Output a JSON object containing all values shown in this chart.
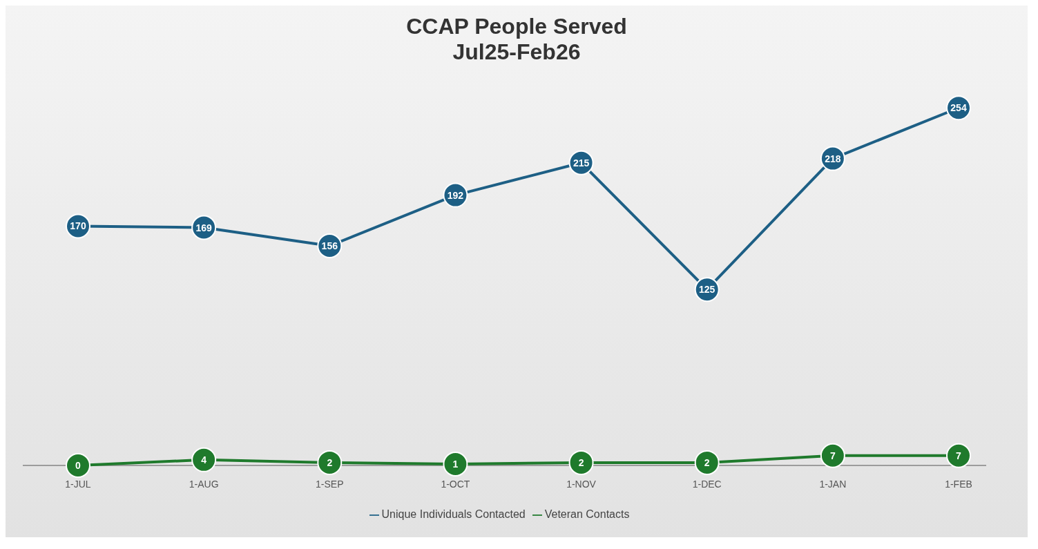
{
  "chart_data": {
    "type": "line",
    "title": "CCAP People Served",
    "subtitle": "Jul25-Feb26",
    "categories": [
      "1-JUL",
      "1-AUG",
      "1-SEP",
      "1-OCT",
      "1-NOV",
      "1-DEC",
      "1-JAN",
      "1-FEB"
    ],
    "series": [
      {
        "name": "Unique Individuals Contacted",
        "color": "#1d5f85",
        "values": [
          170,
          169,
          156,
          192,
          215,
          125,
          218,
          254
        ]
      },
      {
        "name": "Veteran Contacts",
        "color": "#1f7a2c",
        "values": [
          0,
          4,
          2,
          1,
          2,
          2,
          7,
          7
        ]
      }
    ],
    "tick_labels": "x",
    "legend": "bottom",
    "marker": "circle",
    "line_style": "solid",
    "data_labels": true
  }
}
